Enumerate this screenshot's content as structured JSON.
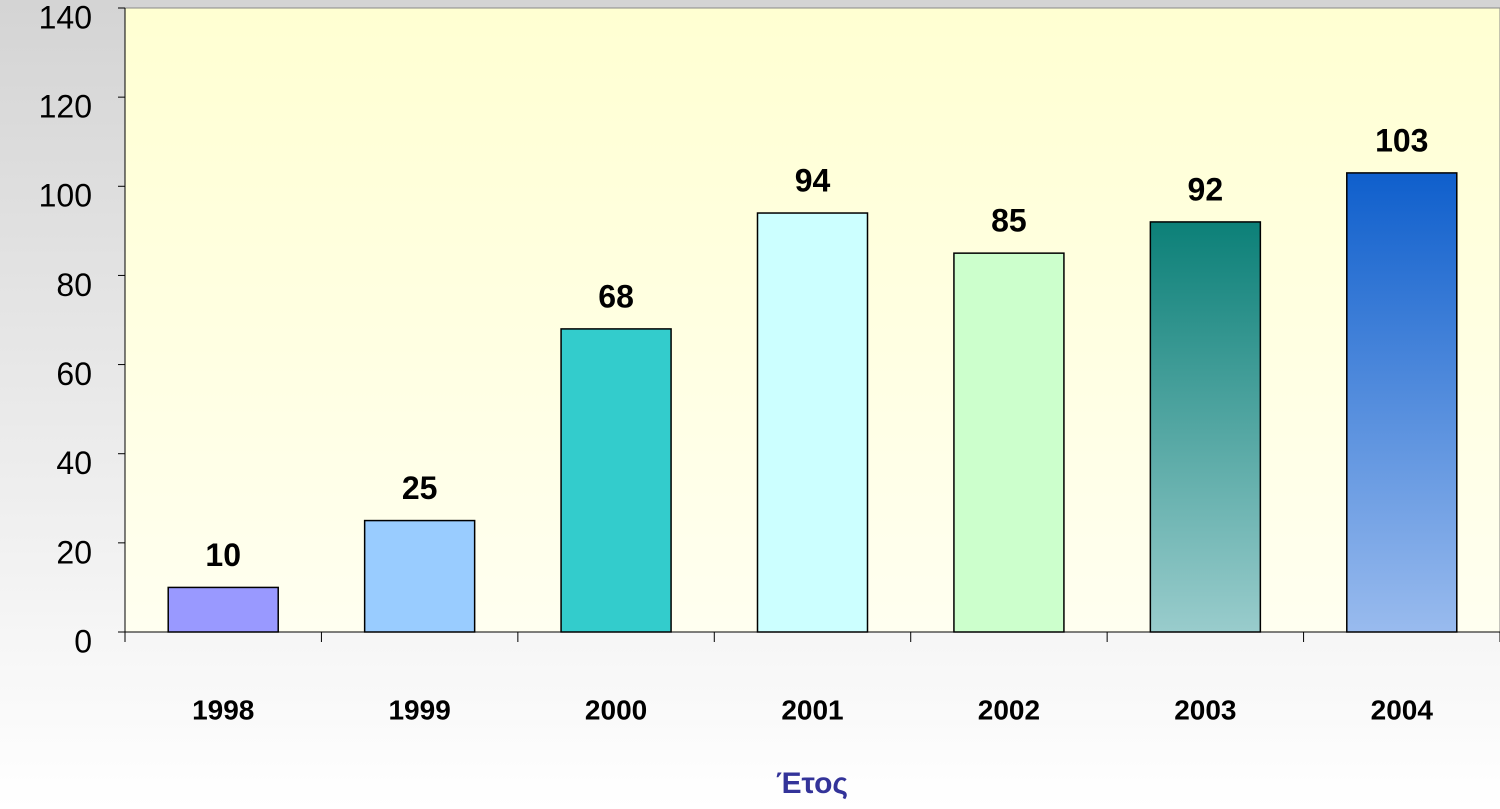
{
  "chart_data": {
    "type": "bar",
    "x_label": "Έτος",
    "categories": [
      "1998",
      "1999",
      "2000",
      "2001",
      "2002",
      "2003",
      "2004"
    ],
    "values": [
      10,
      25,
      68,
      94,
      85,
      92,
      103
    ],
    "colors": [
      "#9999ff",
      "#99ccff",
      "#33cccc",
      "#ccffff",
      "#ccffcc",
      [
        "#0c8078",
        "#99cccc"
      ],
      [
        "#0f5fcc",
        "#99bbee"
      ]
    ],
    "ylim": [
      0,
      140
    ],
    "yticks": [
      0,
      20,
      40,
      60,
      80,
      100,
      120,
      140
    ],
    "grid": false
  }
}
